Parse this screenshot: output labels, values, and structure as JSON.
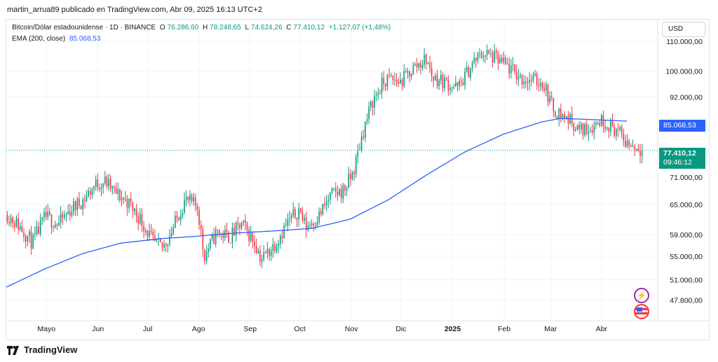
{
  "header": {
    "publisher_line": "martin_arrua89 publicado en TradingView.com, Abr 09, 2025 16:13 UTC+2"
  },
  "legend": {
    "symbol": "Bitcoin/Dólar estadounidense · 1D · BINANCE",
    "o_label": "O",
    "o_value": "76.286,60",
    "h_label": "H",
    "h_value": "78.248,65",
    "l_label": "L",
    "l_value": "74.624,26",
    "c_label": "C",
    "c_value": "77.410,12",
    "change": "+1.127,07 (+1,48%)",
    "ema_label": "EMA (200, close)",
    "ema_value": "85.068,53"
  },
  "currency_button": "USD",
  "price_tags": {
    "ema": "85.068,53",
    "last": "77.410,12",
    "countdown": "09:46:12"
  },
  "brand": "TradingView",
  "icons": {
    "flash": "flash-icon",
    "flag": "us-flag-icon"
  },
  "colors": {
    "up": "#089981",
    "down": "#f23645",
    "ema": "#2962ff",
    "grid": "#f0f3fa"
  },
  "chart_data": {
    "type": "candlestick",
    "y_scale": "log",
    "ylim": [
      44800,
      118000
    ],
    "y_ticks": [
      {
        "value": 110000,
        "label": "110.000,00"
      },
      {
        "value": 100000,
        "label": "100.000,00"
      },
      {
        "value": 92000,
        "label": "92.000,00"
      },
      {
        "value": 71000,
        "label": "71.000,00"
      },
      {
        "value": 65000,
        "label": "65.000,00"
      },
      {
        "value": 59000,
        "label": "59.000,00"
      },
      {
        "value": 55000,
        "label": "55.000,00"
      },
      {
        "value": 51000,
        "label": "51.000,00"
      },
      {
        "value": 47800,
        "label": "47.800,00"
      }
    ],
    "x_ticks": [
      {
        "label": "Mayo",
        "pos": 0.063,
        "bold": false
      },
      {
        "label": "Jun",
        "pos": 0.144,
        "bold": false
      },
      {
        "label": "Jul",
        "pos": 0.222,
        "bold": false
      },
      {
        "label": "Ago",
        "pos": 0.302,
        "bold": false
      },
      {
        "label": "Sep",
        "pos": 0.383,
        "bold": false
      },
      {
        "label": "Oct",
        "pos": 0.461,
        "bold": false
      },
      {
        "label": "Nov",
        "pos": 0.542,
        "bold": false
      },
      {
        "label": "Dic",
        "pos": 0.62,
        "bold": false
      },
      {
        "label": "2025",
        "pos": 0.701,
        "bold": true
      },
      {
        "label": "Feb",
        "pos": 0.782,
        "bold": false
      },
      {
        "label": "Mar",
        "pos": 0.855,
        "bold": false
      },
      {
        "label": "Abr",
        "pos": 0.935,
        "bold": false
      }
    ],
    "series": [
      {
        "name": "BTCUSD",
        "type": "candlestick",
        "close_anchors": [
          [
            0,
            63000
          ],
          [
            0.02,
            60500
          ],
          [
            0.04,
            57500
          ],
          [
            0.06,
            62500
          ],
          [
            0.08,
            61000
          ],
          [
            0.1,
            64000
          ],
          [
            0.12,
            66000
          ],
          [
            0.14,
            69500
          ],
          [
            0.155,
            70000
          ],
          [
            0.17,
            67500
          ],
          [
            0.19,
            65500
          ],
          [
            0.21,
            62000
          ],
          [
            0.23,
            57500
          ],
          [
            0.245,
            56500
          ],
          [
            0.26,
            60000
          ],
          [
            0.28,
            66000
          ],
          [
            0.3,
            64500
          ],
          [
            0.31,
            55000
          ],
          [
            0.33,
            59500
          ],
          [
            0.35,
            58500
          ],
          [
            0.37,
            61000
          ],
          [
            0.39,
            57500
          ],
          [
            0.4,
            54500
          ],
          [
            0.42,
            57000
          ],
          [
            0.44,
            61000
          ],
          [
            0.46,
            64000
          ],
          [
            0.47,
            60500
          ],
          [
            0.49,
            62500
          ],
          [
            0.51,
            67000
          ],
          [
            0.53,
            68000
          ],
          [
            0.545,
            72000
          ],
          [
            0.56,
            82000
          ],
          [
            0.575,
            90500
          ],
          [
            0.59,
            95500
          ],
          [
            0.6,
            97500
          ],
          [
            0.62,
            96500
          ],
          [
            0.64,
            101000
          ],
          [
            0.66,
            104000
          ],
          [
            0.67,
            98000
          ],
          [
            0.69,
            96500
          ],
          [
            0.71,
            94500
          ],
          [
            0.72,
            98000
          ],
          [
            0.735,
            103000
          ],
          [
            0.75,
            106000
          ],
          [
            0.77,
            104000
          ],
          [
            0.79,
            101000
          ],
          [
            0.81,
            97500
          ],
          [
            0.83,
            97000
          ],
          [
            0.845,
            96000
          ],
          [
            0.86,
            88500
          ],
          [
            0.875,
            86500
          ],
          [
            0.89,
            85000
          ],
          [
            0.9,
            82500
          ],
          [
            0.92,
            83500
          ],
          [
            0.935,
            85500
          ],
          [
            0.945,
            84500
          ],
          [
            0.96,
            82500
          ],
          [
            0.975,
            79500
          ],
          [
            1.0,
            77410.12
          ]
        ]
      },
      {
        "name": "EMA (200, close)",
        "type": "line",
        "anchors": [
          [
            0,
            49800
          ],
          [
            0.06,
            52800
          ],
          [
            0.12,
            55500
          ],
          [
            0.18,
            57400
          ],
          [
            0.24,
            58200
          ],
          [
            0.3,
            58700
          ],
          [
            0.36,
            59300
          ],
          [
            0.42,
            59700
          ],
          [
            0.48,
            60200
          ],
          [
            0.54,
            62000
          ],
          [
            0.6,
            66000
          ],
          [
            0.66,
            71500
          ],
          [
            0.72,
            77000
          ],
          [
            0.78,
            81500
          ],
          [
            0.84,
            84800
          ],
          [
            0.87,
            85800
          ],
          [
            0.92,
            85500
          ],
          [
            0.975,
            85068.53
          ]
        ]
      }
    ],
    "last_price": 77410.12
  }
}
